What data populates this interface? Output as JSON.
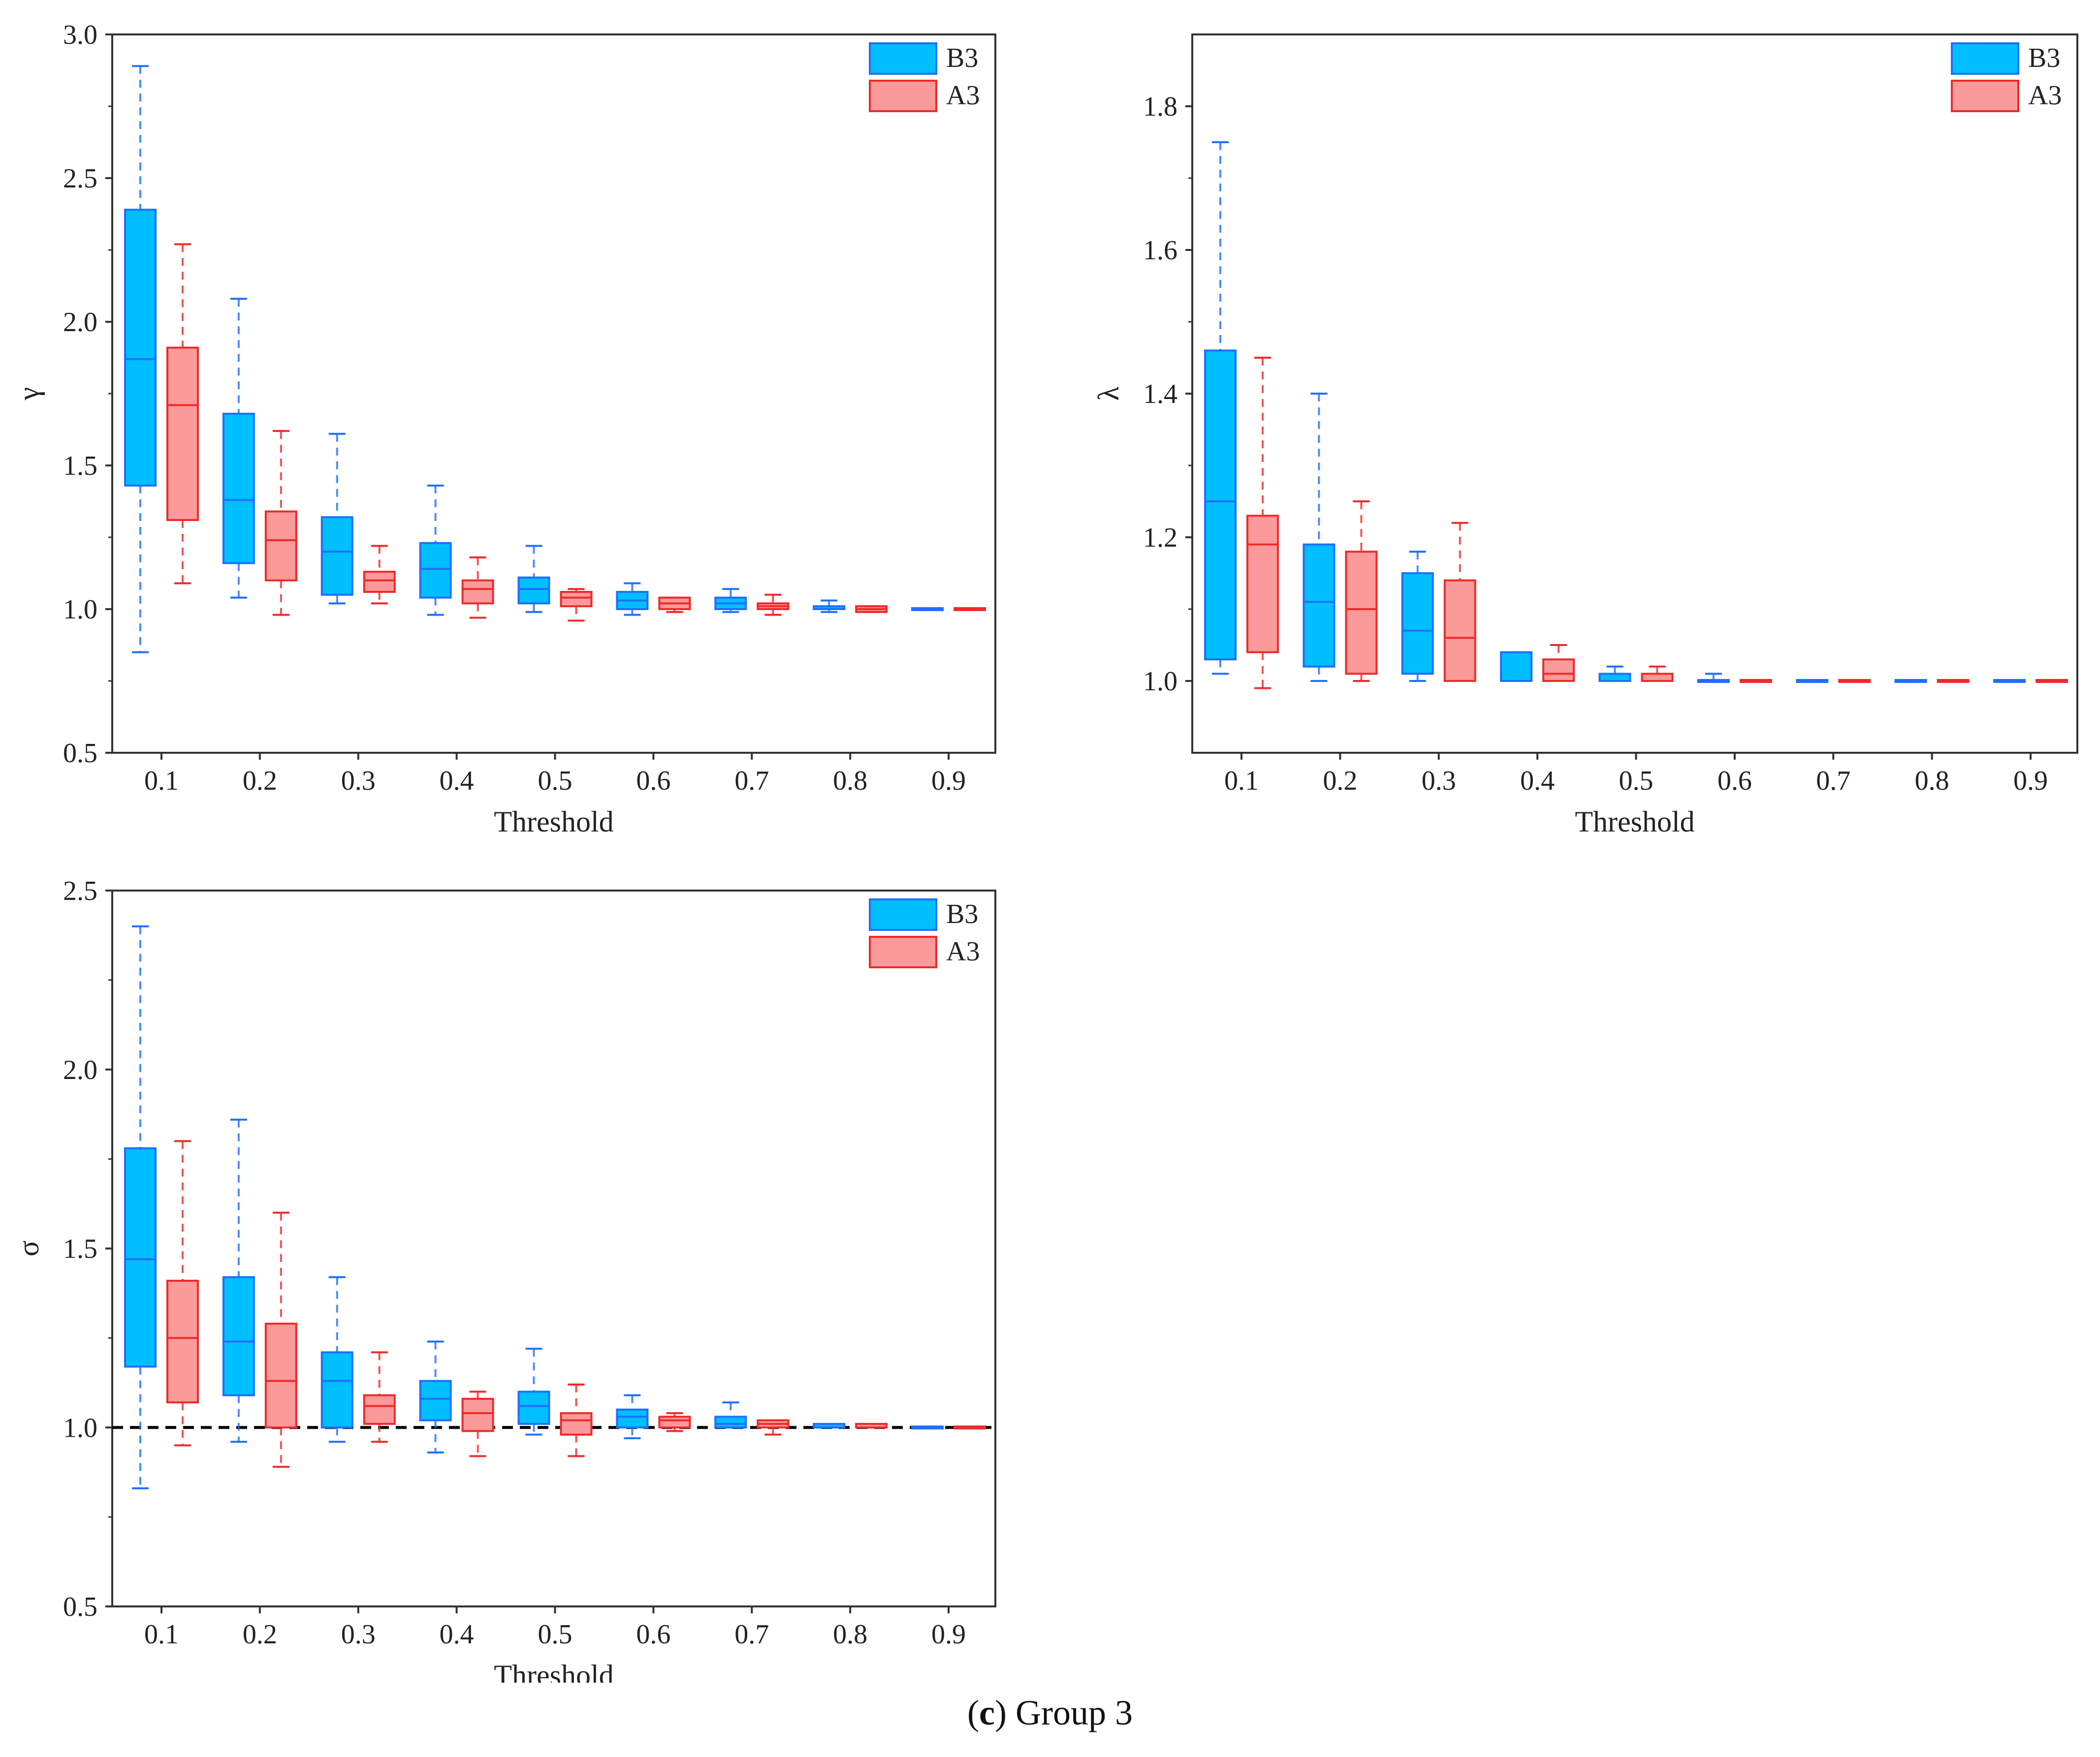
{
  "caption": {
    "letter": "c",
    "text": "Group 3"
  },
  "colors": {
    "B3_fill": "#00BFFF",
    "B3_line": "#1E6FFF",
    "A3_fill": "#FA9A9A",
    "A3_line": "#EE2A2A",
    "axis": "#333333",
    "reference": "#000000"
  },
  "chart_data": [
    {
      "id": "gamma",
      "type": "boxplot",
      "ylabel": "γ",
      "xlabel": "Threshold",
      "categories": [
        "0.1",
        "0.2",
        "0.3",
        "0.4",
        "0.5",
        "0.6",
        "0.7",
        "0.8",
        "0.9"
      ],
      "ylim": [
        0.5,
        3.0
      ],
      "yticks": [
        0.5,
        1.0,
        1.5,
        2.0,
        2.5,
        3.0
      ],
      "ytick_labels": [
        "0.5",
        "1.0",
        "1.5",
        "2.0",
        "2.5",
        "3.0"
      ],
      "legend": [
        "B3",
        "A3"
      ],
      "legend_position": "top-right",
      "reference_line": null,
      "series": [
        {
          "name": "B3",
          "boxes": [
            {
              "min": 0.85,
              "q1": 1.43,
              "median": 1.87,
              "q3": 2.39,
              "max": 2.89
            },
            {
              "min": 1.04,
              "q1": 1.16,
              "median": 1.38,
              "q3": 1.68,
              "max": 2.08
            },
            {
              "min": 1.02,
              "q1": 1.05,
              "median": 1.2,
              "q3": 1.32,
              "max": 1.61
            },
            {
              "min": 0.98,
              "q1": 1.04,
              "median": 1.14,
              "q3": 1.23,
              "max": 1.43
            },
            {
              "min": 0.99,
              "q1": 1.02,
              "median": 1.07,
              "q3": 1.11,
              "max": 1.22
            },
            {
              "min": 0.98,
              "q1": 1.0,
              "median": 1.03,
              "q3": 1.06,
              "max": 1.09
            },
            {
              "min": 0.99,
              "q1": 1.0,
              "median": 1.02,
              "q3": 1.04,
              "max": 1.07
            },
            {
              "min": 0.99,
              "q1": 1.0,
              "median": 1.0,
              "q3": 1.01,
              "max": 1.03
            },
            {
              "min": 1.0,
              "q1": 1.0,
              "median": 1.0,
              "q3": 1.0,
              "max": 1.0
            }
          ]
        },
        {
          "name": "A3",
          "boxes": [
            {
              "min": 1.09,
              "q1": 1.31,
              "median": 1.71,
              "q3": 1.91,
              "max": 2.27
            },
            {
              "min": 0.98,
              "q1": 1.1,
              "median": 1.24,
              "q3": 1.34,
              "max": 1.62
            },
            {
              "min": 1.02,
              "q1": 1.06,
              "median": 1.1,
              "q3": 1.13,
              "max": 1.22
            },
            {
              "min": 0.97,
              "q1": 1.02,
              "median": 1.07,
              "q3": 1.1,
              "max": 1.18
            },
            {
              "min": 0.96,
              "q1": 1.01,
              "median": 1.04,
              "q3": 1.06,
              "max": 1.07
            },
            {
              "min": 0.99,
              "q1": 1.0,
              "median": 1.02,
              "q3": 1.04,
              "max": 1.04
            },
            {
              "min": 0.98,
              "q1": 1.0,
              "median": 1.01,
              "q3": 1.02,
              "max": 1.05
            },
            {
              "min": 0.99,
              "q1": 0.99,
              "median": 1.0,
              "q3": 1.01,
              "max": 1.01
            },
            {
              "min": 1.0,
              "q1": 1.0,
              "median": 1.0,
              "q3": 1.0,
              "max": 1.0
            }
          ]
        }
      ]
    },
    {
      "id": "lambda",
      "type": "boxplot",
      "ylabel": "λ",
      "xlabel": "Threshold",
      "categories": [
        "0.1",
        "0.2",
        "0.3",
        "0.4",
        "0.5",
        "0.6",
        "0.7",
        "0.8",
        "0.9"
      ],
      "ylim": [
        0.9,
        1.9
      ],
      "yticks": [
        1.0,
        1.2,
        1.4,
        1.6,
        1.8
      ],
      "ytick_labels": [
        "1.0",
        "1.2",
        "1.4",
        "1.6",
        "1.8"
      ],
      "legend": [
        "B3",
        "A3"
      ],
      "legend_position": "top-right",
      "reference_line": null,
      "series": [
        {
          "name": "B3",
          "boxes": [
            {
              "min": 1.01,
              "q1": 1.03,
              "median": 1.25,
              "q3": 1.46,
              "max": 1.75
            },
            {
              "min": 1.0,
              "q1": 1.02,
              "median": 1.11,
              "q3": 1.19,
              "max": 1.4
            },
            {
              "min": 1.0,
              "q1": 1.01,
              "median": 1.07,
              "q3": 1.15,
              "max": 1.18
            },
            {
              "min": 1.0,
              "q1": 1.0,
              "median": 1.0,
              "q3": 1.04,
              "max": 1.04
            },
            {
              "min": 1.0,
              "q1": 1.0,
              "median": 1.0,
              "q3": 1.01,
              "max": 1.02
            },
            {
              "min": 1.0,
              "q1": 1.0,
              "median": 1.0,
              "q3": 1.0,
              "max": 1.01
            },
            {
              "min": 1.0,
              "q1": 1.0,
              "median": 1.0,
              "q3": 1.0,
              "max": 1.0
            },
            {
              "min": 1.0,
              "q1": 1.0,
              "median": 1.0,
              "q3": 1.0,
              "max": 1.0
            },
            {
              "min": 1.0,
              "q1": 1.0,
              "median": 1.0,
              "q3": 1.0,
              "max": 1.0
            }
          ]
        },
        {
          "name": "A3",
          "boxes": [
            {
              "min": 0.99,
              "q1": 1.04,
              "median": 1.19,
              "q3": 1.23,
              "max": 1.45
            },
            {
              "min": 1.0,
              "q1": 1.01,
              "median": 1.1,
              "q3": 1.18,
              "max": 1.25
            },
            {
              "min": 1.0,
              "q1": 1.0,
              "median": 1.06,
              "q3": 1.14,
              "max": 1.22
            },
            {
              "min": 1.0,
              "q1": 1.0,
              "median": 1.01,
              "q3": 1.03,
              "max": 1.05
            },
            {
              "min": 1.0,
              "q1": 1.0,
              "median": 1.0,
              "q3": 1.01,
              "max": 1.02
            },
            {
              "min": 1.0,
              "q1": 1.0,
              "median": 1.0,
              "q3": 1.0,
              "max": 1.0
            },
            {
              "min": 1.0,
              "q1": 1.0,
              "median": 1.0,
              "q3": 1.0,
              "max": 1.0
            },
            {
              "min": 1.0,
              "q1": 1.0,
              "median": 1.0,
              "q3": 1.0,
              "max": 1.0
            },
            {
              "min": 1.0,
              "q1": 1.0,
              "median": 1.0,
              "q3": 1.0,
              "max": 1.0
            }
          ]
        }
      ]
    },
    {
      "id": "sigma",
      "type": "boxplot",
      "ylabel": "σ",
      "xlabel": "Threshold",
      "categories": [
        "0.1",
        "0.2",
        "0.3",
        "0.4",
        "0.5",
        "0.6",
        "0.7",
        "0.8",
        "0.9"
      ],
      "ylim": [
        0.5,
        2.5
      ],
      "yticks": [
        0.5,
        1.0,
        1.5,
        2.0,
        2.5
      ],
      "ytick_labels": [
        "0.5",
        "1.0",
        "1.5",
        "2.0",
        "2.5"
      ],
      "legend": [
        "B3",
        "A3"
      ],
      "legend_position": "top-right",
      "reference_line": 1.0,
      "series": [
        {
          "name": "B3",
          "boxes": [
            {
              "min": 0.83,
              "q1": 1.17,
              "median": 1.47,
              "q3": 1.78,
              "max": 2.4
            },
            {
              "min": 0.96,
              "q1": 1.09,
              "median": 1.24,
              "q3": 1.42,
              "max": 1.86
            },
            {
              "min": 0.96,
              "q1": 1.0,
              "median": 1.13,
              "q3": 1.21,
              "max": 1.42
            },
            {
              "min": 0.93,
              "q1": 1.02,
              "median": 1.08,
              "q3": 1.13,
              "max": 1.24
            },
            {
              "min": 0.98,
              "q1": 1.01,
              "median": 1.06,
              "q3": 1.1,
              "max": 1.22
            },
            {
              "min": 0.97,
              "q1": 1.0,
              "median": 1.03,
              "q3": 1.05,
              "max": 1.09
            },
            {
              "min": 1.0,
              "q1": 1.0,
              "median": 1.01,
              "q3": 1.03,
              "max": 1.07
            },
            {
              "min": 1.0,
              "q1": 1.0,
              "median": 1.0,
              "q3": 1.01,
              "max": 1.01
            },
            {
              "min": 1.0,
              "q1": 1.0,
              "median": 1.0,
              "q3": 1.0,
              "max": 1.0
            }
          ]
        },
        {
          "name": "A3",
          "boxes": [
            {
              "min": 0.95,
              "q1": 1.07,
              "median": 1.25,
              "q3": 1.41,
              "max": 1.8
            },
            {
              "min": 0.89,
              "q1": 1.0,
              "median": 1.13,
              "q3": 1.29,
              "max": 1.6
            },
            {
              "min": 0.96,
              "q1": 1.01,
              "median": 1.06,
              "q3": 1.09,
              "max": 1.21
            },
            {
              "min": 0.92,
              "q1": 0.99,
              "median": 1.04,
              "q3": 1.08,
              "max": 1.1
            },
            {
              "min": 0.92,
              "q1": 0.98,
              "median": 1.02,
              "q3": 1.04,
              "max": 1.12
            },
            {
              "min": 0.99,
              "q1": 1.0,
              "median": 1.02,
              "q3": 1.03,
              "max": 1.04
            },
            {
              "min": 0.98,
              "q1": 1.0,
              "median": 1.01,
              "q3": 1.02,
              "max": 1.02
            },
            {
              "min": 1.0,
              "q1": 1.0,
              "median": 1.0,
              "q3": 1.01,
              "max": 1.01
            },
            {
              "min": 1.0,
              "q1": 1.0,
              "median": 1.0,
              "q3": 1.0,
              "max": 1.0
            }
          ]
        }
      ]
    }
  ]
}
